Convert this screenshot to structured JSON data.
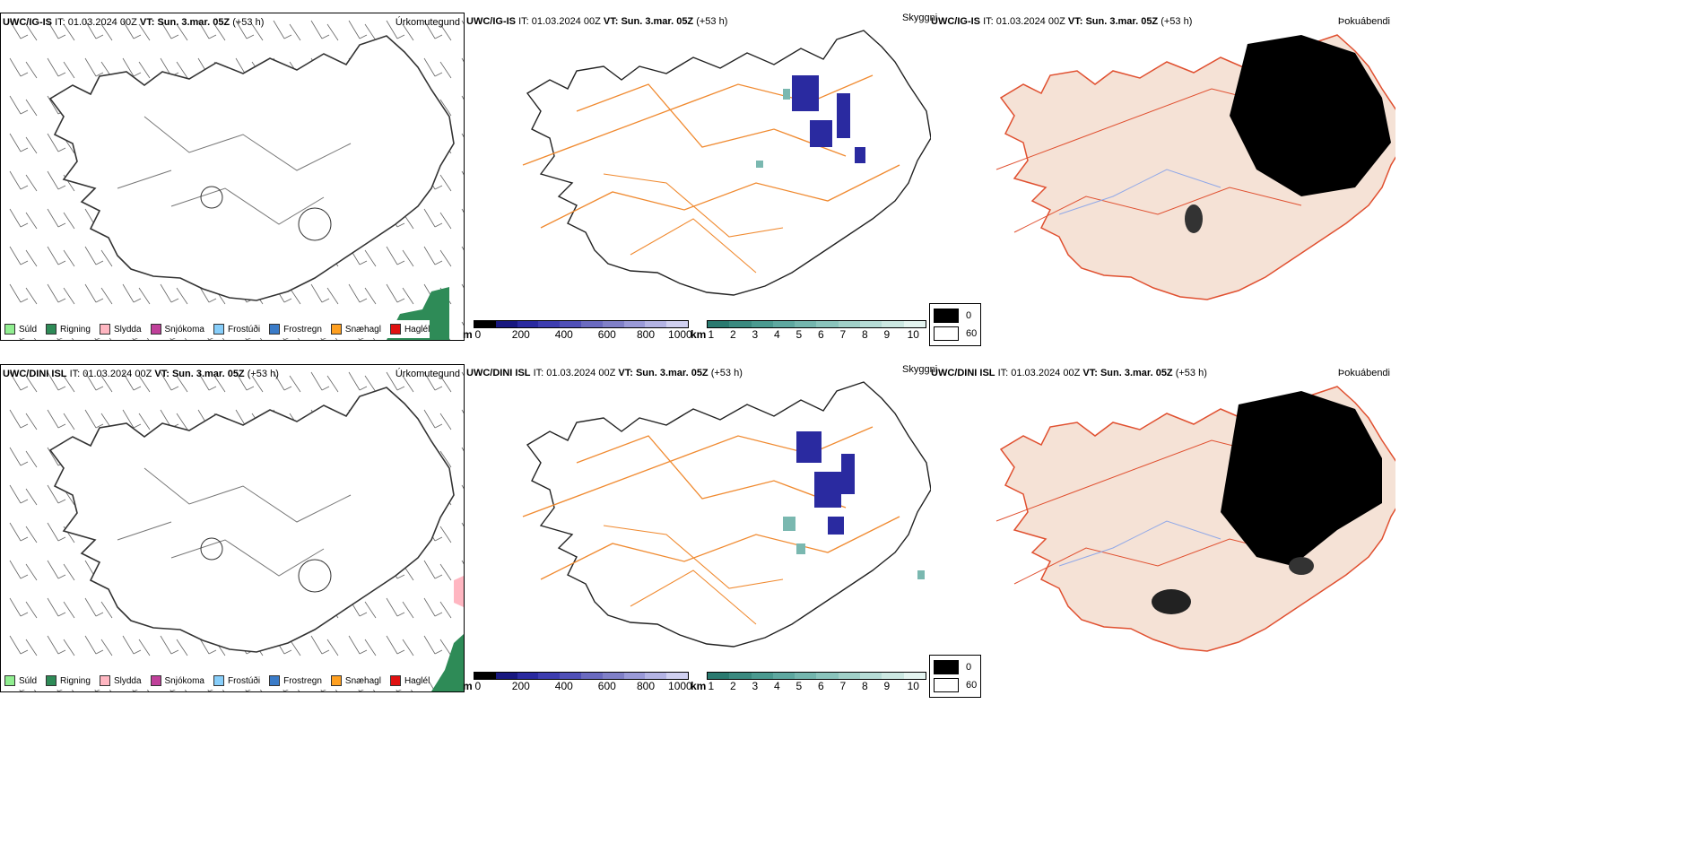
{
  "rows": [
    {
      "model": "UWC/IG-IS",
      "it_label": "IT:",
      "it_value": "01.03.2024 00Z",
      "vt_label": "VT:",
      "vt_value": "Sun. 3.mar. 05Z",
      "lead": "(+53 h)",
      "panels": {
        "precip_type": "Úrkomutegund",
        "visibility": "Skyggni",
        "fog": "Þokuábendi"
      }
    },
    {
      "model": "UWC/DINI ISL",
      "it_label": "IT:",
      "it_value": "01.03.2024 00Z",
      "vt_label": "VT:",
      "vt_value": "Sun. 3.mar. 05Z",
      "lead": "(+53 h)",
      "panels": {
        "precip_type": "Úrkomutegund",
        "visibility": "Skyggni",
        "fog": "Þokuábendi"
      }
    }
  ],
  "precip_legend": [
    {
      "label": "Súld",
      "color": "#90ee90"
    },
    {
      "label": "Rigning",
      "color": "#2e8b57"
    },
    {
      "label": "Slydda",
      "color": "#ffb6c1"
    },
    {
      "label": "Snjókoma",
      "color": "#c0409a"
    },
    {
      "label": "Frostúði",
      "color": "#87cefa"
    },
    {
      "label": "Frostregn",
      "color": "#3a7bc8"
    },
    {
      "label": "Snæhagl",
      "color": "#ffa020"
    },
    {
      "label": "Haglél",
      "color": "#e01010"
    }
  ],
  "vis_scale_m": {
    "unit": "m",
    "ticks": [
      "0",
      "200",
      "400",
      "600",
      "800",
      "1000"
    ],
    "colors": [
      "#000000",
      "#181880",
      "#2a2aa0",
      "#3d3db0",
      "#5050b8",
      "#6a6ac0",
      "#8080c8",
      "#9a9ad8",
      "#b4b4e4",
      "#d0d0f0"
    ]
  },
  "vis_scale_km": {
    "unit": "km",
    "ticks": [
      "1",
      "2",
      "3",
      "4",
      "5",
      "6",
      "7",
      "8",
      "9",
      "10"
    ],
    "colors": [
      "#2a7a70",
      "#3a8a80",
      "#4a9a90",
      "#5ea8a0",
      "#74b6ae",
      "#8ac4bc",
      "#a0d0c8",
      "#b6dcd6",
      "#cce8e2",
      "#e4f4f0"
    ]
  },
  "fog_legend": [
    {
      "label": "0",
      "color": "#000000"
    },
    {
      "label": "60",
      "color": "#ffffff"
    }
  ]
}
